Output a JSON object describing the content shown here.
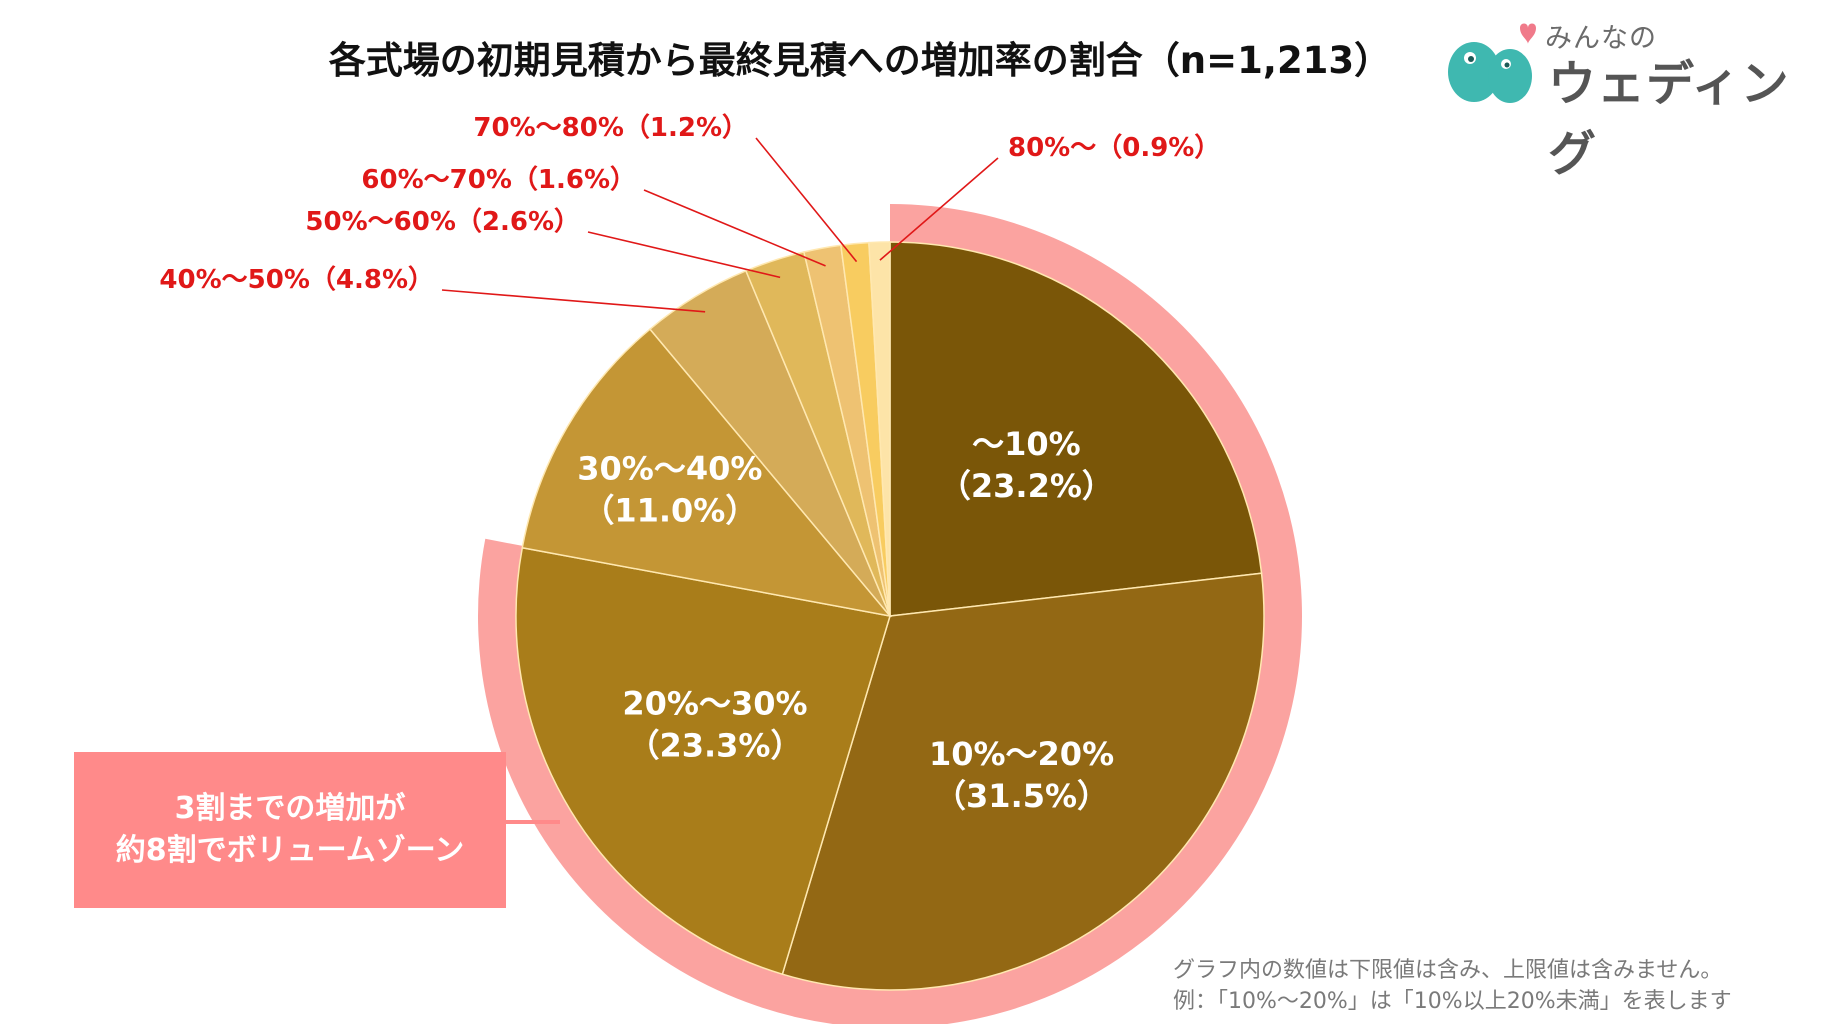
{
  "title": "各式場の初期見積から最終見積への増加率の割合（n=1,213）",
  "logo": {
    "line1": "みんなの",
    "line2": "ウェディング"
  },
  "chart_data": {
    "type": "pie",
    "title": "各式場の初期見積から最終見積への増加率の割合（n=1,213）",
    "start": "12 o'clock, clockwise",
    "slices": [
      {
        "label": "～10%",
        "value_label": "（23.2%）",
        "value": 23.2,
        "color": "#7a5608",
        "label_style": "inside"
      },
      {
        "label": "10%～20%",
        "value_label": "（31.5%）",
        "value": 31.5,
        "color": "#936814",
        "label_style": "inside"
      },
      {
        "label": "20%～30%",
        "value_label": "（23.3%）",
        "value": 23.3,
        "color": "#a97d1a",
        "label_style": "inside"
      },
      {
        "label": "30%～40%",
        "value_label": "（11.0%）",
        "value": 11.0,
        "color": "#c49635",
        "label_style": "inside"
      },
      {
        "label": "40%～50%",
        "value_label": "（4.8%）",
        "value": 4.8,
        "color": "#d4ab58",
        "label_style": "outside"
      },
      {
        "label": "50%～60%",
        "value_label": "（2.6%）",
        "value": 2.6,
        "color": "#e0b85a",
        "label_style": "outside"
      },
      {
        "label": "60%～70%",
        "value_label": "（1.6%）",
        "value": 1.6,
        "color": "#eec272",
        "label_style": "outside"
      },
      {
        "label": "70%～80%",
        "value_label": "（1.2%）",
        "value": 1.2,
        "color": "#f8cc60",
        "label_style": "outside"
      },
      {
        "label": "80%～",
        "value_label": "（0.9%）",
        "value": 0.9,
        "color": "#fde4a8",
        "label_style": "outside"
      }
    ],
    "highlight_ring": {
      "color": "#fba3a0",
      "covers_percent": 78.0
    },
    "inside_label_color": "#ffffff",
    "outside_label_color": "#e01818"
  },
  "callout": {
    "line1": "3割までの増加が",
    "line2": "約8割でボリュームゾーン",
    "color": "#ff8a8a"
  },
  "notes": {
    "line1": "グラフ内の数値は下限値は含み、上限値は含みません。",
    "line2": "例：「10%～20%」は「10%以上20%未満」を表します"
  }
}
